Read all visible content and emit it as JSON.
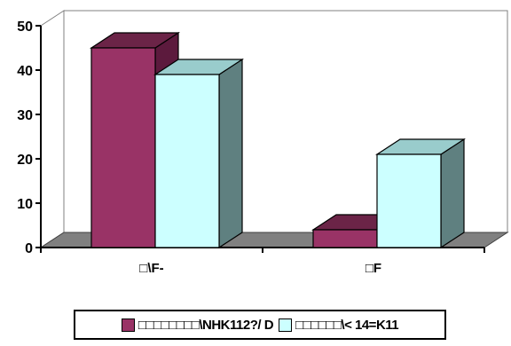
{
  "chart_data": {
    "type": "bar",
    "style": "3d-clustered",
    "categories": [
      "□\\F-",
      "□F"
    ],
    "series": [
      {
        "name": "□□□□□□□□\\NHK112?/ D",
        "values": [
          45,
          4
        ]
      },
      {
        "name": "□□□□□□\\< 14=K11",
        "values": [
          39,
          21
        ]
      }
    ],
    "ylim": [
      0,
      50
    ],
    "yticks": [
      0,
      10,
      20,
      30,
      40,
      50
    ],
    "grid": false,
    "legend": "bottom",
    "colors": {
      "series_front": [
        "#993366",
        "#CCFFFF"
      ],
      "series_top": [
        "#6B2447",
        "#99CCCC"
      ],
      "series_side": [
        "#5C1A3D",
        "#5F8080"
      ],
      "floor": "#808080",
      "wall": "#ffffff"
    }
  }
}
